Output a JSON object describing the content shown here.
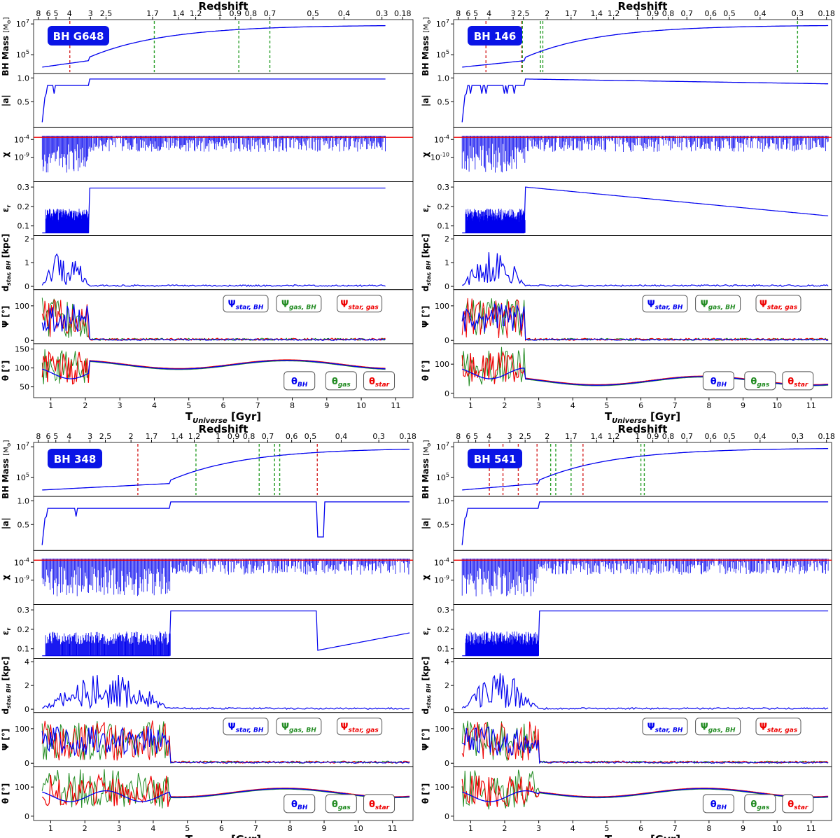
{
  "chart_data": [
    {
      "type": "line",
      "bh_label": "BH G648",
      "top_axis_title": "Redshift",
      "xlabel_main": "T",
      "xlabel_sub": "Universe",
      "xlabel_tail": " [Gyr]",
      "xlim": [
        0.5,
        11.5
      ],
      "xticks": [
        "1",
        "2",
        "3",
        "4",
        "5",
        "6",
        "7",
        "8",
        "9",
        "10",
        "11"
      ],
      "redshift_ticks": [
        {
          "t": 0.64,
          "label": "8"
        },
        {
          "t": 0.93,
          "label": "6"
        },
        {
          "t": 1.15,
          "label": "5"
        },
        {
          "t": 1.54,
          "label": "4"
        },
        {
          "t": 2.15,
          "label": "3"
        },
        {
          "t": 2.6,
          "label": "2.5"
        },
        {
          "t": 3.95,
          "label": "1.7"
        },
        {
          "t": 4.7,
          "label": "1.4"
        },
        {
          "t": 5.2,
          "label": "1.2"
        },
        {
          "t": 5.9,
          "label": "1"
        },
        {
          "t": 6.35,
          "label": "0.9"
        },
        {
          "t": 6.8,
          "label": "0.8"
        },
        {
          "t": 7.35,
          "label": "0.7"
        },
        {
          "t": 8.6,
          "label": "0.5"
        },
        {
          "t": 9.5,
          "label": "0.4"
        },
        {
          "t": 10.6,
          "label": "0.3"
        },
        {
          "t": 11.2,
          "label": "0.18"
        }
      ],
      "merger_lines": [
        {
          "t": 1.55,
          "color": "#d62728"
        },
        {
          "t": 4.0,
          "color": "#2ca02c"
        },
        {
          "t": 6.45,
          "color": "#2ca02c"
        },
        {
          "t": 7.35,
          "color": "#2ca02c"
        }
      ],
      "legend_psi": [
        "star, BH",
        "gas, BH",
        "star, gas"
      ],
      "legend_theta": [
        "BH",
        "gas",
        "star"
      ]
    },
    {
      "type": "line",
      "bh_label": "BH 146",
      "top_axis_title": "Redshift",
      "xlabel_main": "T",
      "xlabel_sub": "Universe",
      "xlabel_tail": " [Gyr]",
      "xlim": [
        0.5,
        11.6
      ],
      "xticks": [
        "1",
        "2",
        "3",
        "4",
        "5",
        "6",
        "7",
        "8",
        "9",
        "10",
        "11"
      ],
      "redshift_ticks": [
        {
          "t": 0.64,
          "label": "8"
        },
        {
          "t": 0.93,
          "label": "6"
        },
        {
          "t": 1.15,
          "label": "5"
        },
        {
          "t": 1.54,
          "label": "4"
        },
        {
          "t": 2.25,
          "label": "3"
        },
        {
          "t": 2.55,
          "label": "2.5"
        },
        {
          "t": 3.25,
          "label": "2"
        },
        {
          "t": 3.95,
          "label": "1.7"
        },
        {
          "t": 4.7,
          "label": "1.4"
        },
        {
          "t": 5.2,
          "label": "1.2"
        },
        {
          "t": 5.9,
          "label": "1"
        },
        {
          "t": 6.35,
          "label": "0.9"
        },
        {
          "t": 6.8,
          "label": "0.8"
        },
        {
          "t": 7.35,
          "label": "0.7"
        },
        {
          "t": 8.05,
          "label": "0.6"
        },
        {
          "t": 8.6,
          "label": "0.5"
        },
        {
          "t": 9.5,
          "label": "0.4"
        },
        {
          "t": 10.6,
          "label": "0.3"
        },
        {
          "t": 11.45,
          "label": "0.18"
        }
      ],
      "merger_lines": [
        {
          "t": 1.45,
          "color": "#d62728"
        },
        {
          "t": 2.5,
          "color": "#d62728"
        },
        {
          "t": 2.52,
          "color": "#2ca02c"
        },
        {
          "t": 3.05,
          "color": "#2ca02c"
        },
        {
          "t": 3.12,
          "color": "#2ca02c"
        },
        {
          "t": 10.6,
          "color": "#2ca02c"
        }
      ],
      "legend_psi": [
        "star, BH",
        "gas, BH",
        "star, gas"
      ],
      "legend_theta": [
        "BH",
        "gas",
        "star"
      ]
    },
    {
      "type": "line",
      "bh_label": "BH 348",
      "top_axis_title": "Redshift",
      "xlabel_main": "T",
      "xlabel_sub": "Universe",
      "xlabel_tail": " [Gyr]",
      "xlim": [
        0.5,
        11.6
      ],
      "xticks": [
        "1",
        "2",
        "3",
        "4",
        "5",
        "6",
        "7",
        "8",
        "9",
        "10",
        "11"
      ],
      "redshift_ticks": [
        {
          "t": 0.64,
          "label": "8"
        },
        {
          "t": 0.93,
          "label": "6"
        },
        {
          "t": 1.15,
          "label": "5"
        },
        {
          "t": 1.54,
          "label": "4"
        },
        {
          "t": 2.15,
          "label": "3"
        },
        {
          "t": 2.6,
          "label": "2.5"
        },
        {
          "t": 3.35,
          "label": "2"
        },
        {
          "t": 3.95,
          "label": "1.7"
        },
        {
          "t": 4.7,
          "label": "1.4"
        },
        {
          "t": 5.2,
          "label": "1.2"
        },
        {
          "t": 5.9,
          "label": "1"
        },
        {
          "t": 6.35,
          "label": "0.9"
        },
        {
          "t": 6.8,
          "label": "0.8"
        },
        {
          "t": 7.35,
          "label": "0.7"
        },
        {
          "t": 8.05,
          "label": "0.6"
        },
        {
          "t": 8.6,
          "label": "0.5"
        },
        {
          "t": 9.5,
          "label": "0.4"
        },
        {
          "t": 10.6,
          "label": "0.3"
        },
        {
          "t": 11.45,
          "label": "0.18"
        }
      ],
      "merger_lines": [
        {
          "t": 3.55,
          "color": "#d62728"
        },
        {
          "t": 5.25,
          "color": "#2ca02c"
        },
        {
          "t": 7.1,
          "color": "#2ca02c"
        },
        {
          "t": 7.55,
          "color": "#2ca02c"
        },
        {
          "t": 7.7,
          "color": "#2ca02c"
        },
        {
          "t": 8.8,
          "color": "#d62728"
        }
      ],
      "legend_psi": [
        "star, BH",
        "gas, BH",
        "star, gas"
      ],
      "legend_theta": [
        "BH",
        "gas",
        "star"
      ]
    },
    {
      "type": "line",
      "bh_label": "BH 541",
      "top_axis_title": "Redshift",
      "xlabel_main": "T",
      "xlabel_sub": "Universe",
      "xlabel_tail": " [Gyr]",
      "xlim": [
        0.5,
        11.6
      ],
      "xticks": [
        "1",
        "2",
        "3",
        "4",
        "5",
        "6",
        "7",
        "8",
        "9",
        "10",
        "11"
      ],
      "redshift_ticks": [
        {
          "t": 0.64,
          "label": "8"
        },
        {
          "t": 0.93,
          "label": "6"
        },
        {
          "t": 1.15,
          "label": "5"
        },
        {
          "t": 1.54,
          "label": "4"
        },
        {
          "t": 2.15,
          "label": "3"
        },
        {
          "t": 2.6,
          "label": "2.5"
        },
        {
          "t": 3.25,
          "label": "2"
        },
        {
          "t": 3.95,
          "label": "1.7"
        },
        {
          "t": 4.7,
          "label": "1.4"
        },
        {
          "t": 5.2,
          "label": "1.2"
        },
        {
          "t": 5.9,
          "label": "1"
        },
        {
          "t": 6.35,
          "label": "0.9"
        },
        {
          "t": 6.8,
          "label": "0.8"
        },
        {
          "t": 7.35,
          "label": "0.7"
        },
        {
          "t": 8.05,
          "label": "0.6"
        },
        {
          "t": 8.6,
          "label": "0.5"
        },
        {
          "t": 9.5,
          "label": "0.4"
        },
        {
          "t": 10.6,
          "label": "0.3"
        },
        {
          "t": 11.45,
          "label": "0.18"
        }
      ],
      "merger_lines": [
        {
          "t": 1.55,
          "color": "#d62728"
        },
        {
          "t": 1.95,
          "color": "#d62728"
        },
        {
          "t": 2.4,
          "color": "#d62728"
        },
        {
          "t": 2.95,
          "color": "#d62728"
        },
        {
          "t": 3.35,
          "color": "#2ca02c"
        },
        {
          "t": 3.5,
          "color": "#2ca02c"
        },
        {
          "t": 3.95,
          "color": "#2ca02c"
        },
        {
          "t": 4.3,
          "color": "#d62728"
        },
        {
          "t": 6.0,
          "color": "#2ca02c"
        },
        {
          "t": 6.1,
          "color": "#2ca02c"
        }
      ],
      "legend_psi": [
        "star, BH",
        "gas, BH",
        "star, gas"
      ],
      "legend_theta": [
        "BH",
        "gas",
        "star"
      ]
    }
  ],
  "panel_labels": {
    "mass": "BH Mass",
    "mass_unit": "[M",
    "mass_unit_tail": "]",
    "spin": "|a|",
    "chi": "χ",
    "eps": "ε",
    "eps_sub": "r",
    "dist": "d",
    "dist_sub": "star, BH",
    "dist_unit": " [kpc]",
    "psi": "Ψ [°]",
    "theta": "θ [°]"
  },
  "panels": {
    "mass_ticks": [
      "10^5",
      "10^7"
    ],
    "spin_ticks": [
      "0.5",
      "1.0"
    ],
    "chi_ticks": [
      "10^-4",
      "10^-9"
    ],
    "chi_ticks_alt": [
      "10^-4",
      "10^-10"
    ],
    "eps_ticks": [
      "0.1",
      "0.2",
      "0.3"
    ],
    "dist_ticks_a": [
      "0",
      "1",
      "2"
    ],
    "dist_ticks_b": [
      "0",
      "2",
      "4"
    ],
    "psi_ticks": [
      "0",
      "100"
    ],
    "theta_ticks_a": [
      "50",
      "100",
      "150"
    ],
    "theta_ticks_b": [
      "0",
      "100"
    ]
  },
  "colors": {
    "bh": "#0000ee",
    "gas": "#228b22",
    "star": "#ee0000",
    "badge": "#0a14e6",
    "threshold": "#ee0000"
  }
}
